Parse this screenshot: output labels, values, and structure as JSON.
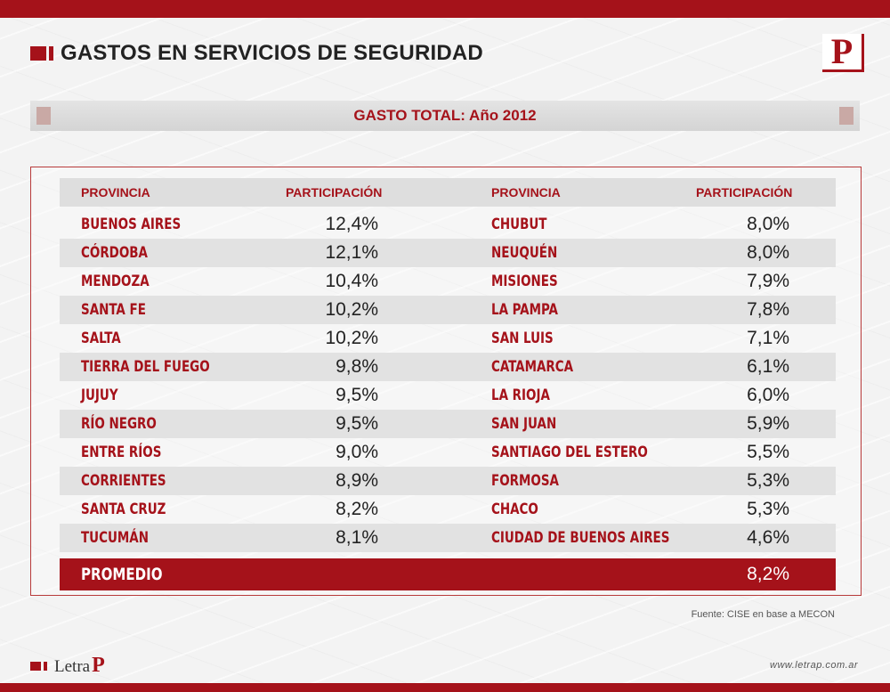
{
  "header": {
    "title": "GASTOS EN SERVICIOS DE SEGURIDAD",
    "logo_letter": "P",
    "subtitle": "GASTO TOTAL: Año 2012"
  },
  "table": {
    "col_province": "PROVINCIA",
    "col_share": "PARTICIPACIÓN",
    "left": [
      {
        "name": "BUENOS AIRES",
        "value": "12,4%"
      },
      {
        "name": "CÓRDOBA",
        "value": "12,1%"
      },
      {
        "name": "MENDOZA",
        "value": "10,4%"
      },
      {
        "name": "SANTA FE",
        "value": "10,2%"
      },
      {
        "name": "SALTA",
        "value": "10,2%"
      },
      {
        "name": "TIERRA DEL FUEGO",
        "value": "9,8%"
      },
      {
        "name": "JUJUY",
        "value": "9,5%"
      },
      {
        "name": "RÍO NEGRO",
        "value": "9,5%"
      },
      {
        "name": "ENTRE RÍOS",
        "value": "9,0%"
      },
      {
        "name": "CORRIENTES",
        "value": "8,9%"
      },
      {
        "name": "SANTA CRUZ",
        "value": "8,2%"
      },
      {
        "name": "TUCUMÁN",
        "value": "8,1%"
      }
    ],
    "right": [
      {
        "name": "CHUBUT",
        "value": "8,0%"
      },
      {
        "name": "NEUQUÉN",
        "value": "8,0%"
      },
      {
        "name": "MISIONES",
        "value": "7,9%"
      },
      {
        "name": "LA PAMPA",
        "value": "7,8%"
      },
      {
        "name": "SAN LUIS",
        "value": "7,1%"
      },
      {
        "name": "CATAMARCA",
        "value": "6,1%"
      },
      {
        "name": "LA RIOJA",
        "value": "6,0%"
      },
      {
        "name": "SAN JUAN",
        "value": "5,9%"
      },
      {
        "name": "SANTIAGO DEL ESTERO",
        "value": "5,5%"
      },
      {
        "name": "FORMOSA",
        "value": "5,3%"
      },
      {
        "name": "CHACO",
        "value": "5,3%"
      },
      {
        "name": "CIUDAD DE BUENOS AIRES",
        "value": "4,6%"
      }
    ],
    "average_label": "PROMEDIO",
    "average_value": "8,2%"
  },
  "footer": {
    "source": "Fuente: CISE en base a MECON",
    "brand_text": "Letra",
    "brand_p": "P",
    "url": "www.letrap.com.ar"
  },
  "colors": {
    "accent": "#a5121a",
    "row_shade": "#e2e2e2"
  }
}
